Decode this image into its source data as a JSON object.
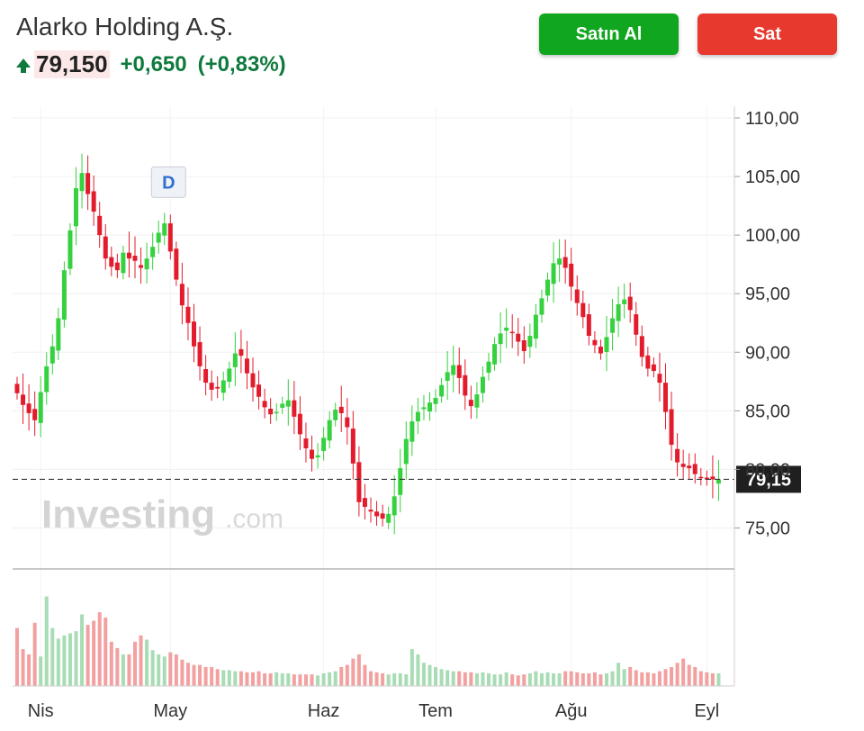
{
  "header": {
    "company_name": "Alarko Holding A.Ş.",
    "price": "79,150",
    "change": "+0,650",
    "change_pct": "(+0,83%)",
    "up_color": "#0f7a3d",
    "trend_icon": "arrow-up-icon"
  },
  "buttons": {
    "buy_label": "Satın Al",
    "sell_label": "Sat",
    "buy_color": "#10a61f",
    "sell_color": "#e8392e"
  },
  "chart_data": {
    "type": "candlestick",
    "y_ticks": [
      "110,00",
      "105,00",
      "100,00",
      "95,00",
      "90,00",
      "85,00",
      "80,00",
      "75,00"
    ],
    "y_tick_values": [
      110,
      105,
      100,
      95,
      90,
      85,
      80,
      75
    ],
    "ylim": [
      71.5,
      111
    ],
    "x_labels": [
      "Nis",
      "May",
      "Haz",
      "Tem",
      "Ağu",
      "Eyl"
    ],
    "x_label_positions": [
      4,
      26,
      52,
      71,
      94,
      117
    ],
    "current_price": 79.15,
    "current_price_label": "79,15",
    "up_color": "#36d13f",
    "down_color": "#e31c2d",
    "event_marker": {
      "label": "D",
      "index": 26
    },
    "watermark": {
      "brand": "Investing",
      "suffix": ".com"
    },
    "n_candles": 120,
    "closes": [
      86.5,
      85.5,
      84.8,
      84.2,
      86.6,
      88.8,
      90.5,
      92.9,
      97.0,
      100.4,
      104.0,
      105.3,
      103.5,
      102.0,
      100.0,
      98.0,
      97.3,
      97.0,
      98.5,
      98.0,
      97.8,
      97.2,
      98.0,
      99.0,
      100.2,
      101.0,
      98.6,
      96.2,
      94.0,
      92.5,
      90.5,
      88.8,
      87.4,
      86.8,
      86.9,
      87.6,
      88.6,
      89.9,
      89.7,
      88.2,
      87.0,
      86.2,
      85.3,
      84.7,
      84.9,
      85.6,
      85.9,
      84.5,
      83.0,
      81.8,
      80.9,
      81.2,
      82.7,
      84.2,
      85.1,
      84.8,
      83.6,
      80.5,
      77.2,
      76.8,
      76.4,
      76.0,
      75.8,
      76.2,
      77.7,
      80.1,
      82.6,
      84.1,
      84.9,
      85.3,
      85.7,
      86.1,
      87.2,
      88.3,
      88.9,
      87.8,
      86.3,
      85.4,
      86.4,
      87.9,
      89.2,
      90.7,
      91.6,
      92.1,
      91.7,
      90.9,
      90.1,
      91.4,
      93.2,
      94.6,
      96.2,
      97.6,
      98.0,
      97.2,
      95.6,
      94.2,
      93.0,
      91.4,
      90.6,
      89.9,
      91.3,
      92.9,
      94.1,
      94.5,
      93.6,
      91.5,
      89.6,
      88.6,
      88.4,
      87.4,
      84.9,
      82.1,
      80.6,
      80.2,
      80.1,
      79.6,
      79.3,
      79.15,
      79.15,
      79.15
    ],
    "volumes": [
      0.55,
      0.35,
      0.3,
      0.6,
      0.28,
      0.85,
      0.55,
      0.45,
      0.48,
      0.5,
      0.52,
      0.68,
      0.58,
      0.62,
      0.7,
      0.65,
      0.42,
      0.36,
      0.3,
      0.3,
      0.42,
      0.48,
      0.44,
      0.34,
      0.3,
      0.28,
      0.32,
      0.3,
      0.25,
      0.22,
      0.2,
      0.2,
      0.18,
      0.18,
      0.16,
      0.15,
      0.15,
      0.14,
      0.14,
      0.13,
      0.13,
      0.14,
      0.12,
      0.12,
      0.13,
      0.12,
      0.12,
      0.11,
      0.11,
      0.11,
      0.11,
      0.1,
      0.12,
      0.13,
      0.14,
      0.18,
      0.2,
      0.26,
      0.3,
      0.2,
      0.14,
      0.13,
      0.12,
      0.11,
      0.12,
      0.12,
      0.11,
      0.35,
      0.3,
      0.22,
      0.2,
      0.18,
      0.16,
      0.15,
      0.14,
      0.14,
      0.13,
      0.13,
      0.12,
      0.13,
      0.12,
      0.11,
      0.11,
      0.13,
      0.11,
      0.1,
      0.11,
      0.12,
      0.14,
      0.12,
      0.13,
      0.12,
      0.12,
      0.14,
      0.14,
      0.13,
      0.12,
      0.12,
      0.13,
      0.11,
      0.12,
      0.14,
      0.22,
      0.16,
      0.18,
      0.15,
      0.13,
      0.13,
      0.12,
      0.14,
      0.16,
      0.18,
      0.22,
      0.26,
      0.2,
      0.18,
      0.14,
      0.13,
      0.12,
      0.12
    ]
  }
}
